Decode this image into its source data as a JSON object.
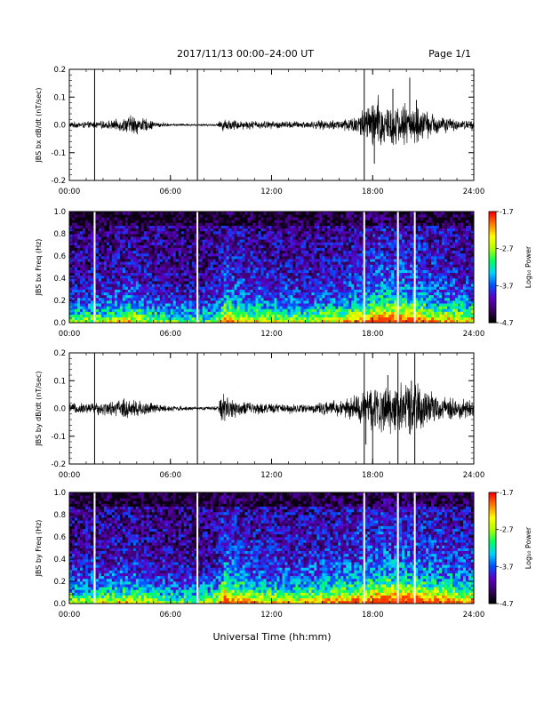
{
  "header": {
    "title": "2017/11/13  00:00–24:00 UT",
    "page": "Page 1/1"
  },
  "x_axis": {
    "ticks": [
      "00:00",
      "06:00",
      "12:00",
      "18:00",
      "24:00"
    ],
    "label": "Universal Time (hh:mm)"
  },
  "colorbar": {
    "tick_labels": [
      "-1.7",
      "-2.7",
      "-3.7",
      "-4.7"
    ],
    "label": "Log₁₀ Power"
  },
  "colors": {
    "colormap": [
      "#000000",
      "#3a0064",
      "#5a00c8",
      "#0050ff",
      "#00d0ff",
      "#00ff60",
      "#b0ff00",
      "#ffff00",
      "#ff8000",
      "#ff0000"
    ]
  },
  "chart_data": [
    {
      "type": "line",
      "ylabel": "JBS bx dB/dt (nT/sec)",
      "xlim": [
        0,
        24
      ],
      "ylim": [
        -0.2,
        0.2
      ],
      "yticks": [
        "0.2",
        "0.1",
        "0.0",
        "-0.1",
        "-0.2"
      ],
      "markers_hours": [
        1.5,
        7.6,
        17.5
      ],
      "envelope": [
        {
          "t": 0.0,
          "amp": 0.012
        },
        {
          "t": 1.5,
          "amp": 0.014
        },
        {
          "t": 2.5,
          "amp": 0.018
        },
        {
          "t": 3.3,
          "amp": 0.03
        },
        {
          "t": 3.8,
          "amp": 0.045
        },
        {
          "t": 4.3,
          "amp": 0.03
        },
        {
          "t": 5.2,
          "amp": 0.012
        },
        {
          "t": 6.0,
          "amp": 0.005
        },
        {
          "t": 7.6,
          "amp": 0.004
        },
        {
          "t": 8.8,
          "amp": 0.006
        },
        {
          "t": 9.0,
          "amp": 0.025
        },
        {
          "t": 10.5,
          "amp": 0.018
        },
        {
          "t": 12.0,
          "amp": 0.016
        },
        {
          "t": 14.0,
          "amp": 0.015
        },
        {
          "t": 16.0,
          "amp": 0.022
        },
        {
          "t": 17.0,
          "amp": 0.04
        },
        {
          "t": 17.8,
          "amp": 0.09
        },
        {
          "t": 18.3,
          "amp": 0.12
        },
        {
          "t": 19.2,
          "amp": 0.08
        },
        {
          "t": 20.0,
          "amp": 0.09
        },
        {
          "t": 21.5,
          "amp": 0.05
        },
        {
          "t": 23.0,
          "amp": 0.02
        },
        {
          "t": 24.0,
          "amp": 0.02
        }
      ],
      "spikes": [
        {
          "t": 18.1,
          "v": -0.14
        },
        {
          "t": 19.2,
          "v": 0.13
        },
        {
          "t": 20.2,
          "v": 0.17
        },
        {
          "t": 20.6,
          "v": 0.09
        }
      ]
    },
    {
      "type": "heatmap",
      "ylabel": "JBS bx Freq (Hz)",
      "xlim": [
        0,
        24
      ],
      "ylim": [
        0,
        1
      ],
      "yticks": [
        "1.0",
        "0.8",
        "0.6",
        "0.4",
        "0.2",
        "0.0"
      ],
      "clim": [
        -4.7,
        -1.7
      ],
      "gaps_hours": [
        1.5,
        7.6,
        17.5,
        19.5,
        20.5
      ],
      "activity": [
        {
          "t": 0.0,
          "level": 0.3
        },
        {
          "t": 2.0,
          "level": 0.35
        },
        {
          "t": 3.5,
          "level": 0.5
        },
        {
          "t": 4.5,
          "level": 0.4
        },
        {
          "t": 6.0,
          "level": 0.25
        },
        {
          "t": 7.6,
          "level": 0.2
        },
        {
          "t": 8.8,
          "level": 0.3
        },
        {
          "t": 9.2,
          "level": 0.7
        },
        {
          "t": 10.5,
          "level": 0.5
        },
        {
          "t": 12.0,
          "level": 0.45
        },
        {
          "t": 14.0,
          "level": 0.4
        },
        {
          "t": 16.0,
          "level": 0.5
        },
        {
          "t": 17.0,
          "level": 0.6
        },
        {
          "t": 18.5,
          "level": 0.85
        },
        {
          "t": 20.0,
          "level": 0.8
        },
        {
          "t": 22.0,
          "level": 0.6
        },
        {
          "t": 24.0,
          "level": 0.5
        }
      ]
    },
    {
      "type": "line",
      "ylabel": "JBS by dB/dt (nT/sec)",
      "xlim": [
        0,
        24
      ],
      "ylim": [
        -0.2,
        0.2
      ],
      "yticks": [
        "0.2",
        "0.1",
        "0.0",
        "-0.1",
        "-0.2"
      ],
      "markers_hours": [
        1.5,
        7.6,
        17.5,
        19.5,
        20.5
      ],
      "envelope": [
        {
          "t": 0.0,
          "amp": 0.02
        },
        {
          "t": 1.5,
          "amp": 0.025
        },
        {
          "t": 2.5,
          "amp": 0.03
        },
        {
          "t": 3.5,
          "amp": 0.045
        },
        {
          "t": 4.2,
          "amp": 0.035
        },
        {
          "t": 5.5,
          "amp": 0.015
        },
        {
          "t": 7.6,
          "amp": 0.006
        },
        {
          "t": 8.8,
          "amp": 0.01
        },
        {
          "t": 9.1,
          "amp": 0.07
        },
        {
          "t": 9.6,
          "amp": 0.05
        },
        {
          "t": 10.0,
          "amp": 0.03
        },
        {
          "t": 12.0,
          "amp": 0.02
        },
        {
          "t": 14.5,
          "amp": 0.02
        },
        {
          "t": 16.5,
          "amp": 0.04
        },
        {
          "t": 17.3,
          "amp": 0.07
        },
        {
          "t": 18.0,
          "amp": 0.1
        },
        {
          "t": 19.0,
          "amp": 0.1
        },
        {
          "t": 20.5,
          "amp": 0.1
        },
        {
          "t": 22.0,
          "amp": 0.05
        },
        {
          "t": 24.0,
          "amp": 0.035
        }
      ],
      "spikes": [
        {
          "t": 18.0,
          "v": -0.2
        },
        {
          "t": 18.9,
          "v": 0.12
        },
        {
          "t": 20.3,
          "v": 0.1
        },
        {
          "t": 17.6,
          "v": -0.13
        }
      ]
    },
    {
      "type": "heatmap",
      "ylabel": "JBS by Freq (Hz)",
      "xlim": [
        0,
        24
      ],
      "ylim": [
        0,
        1
      ],
      "yticks": [
        "1.0",
        "0.8",
        "0.6",
        "0.4",
        "0.2",
        "0.0"
      ],
      "clim": [
        -4.7,
        -1.7
      ],
      "gaps_hours": [
        1.5,
        7.6,
        17.5,
        19.5,
        20.5
      ],
      "activity": [
        {
          "t": 0.0,
          "level": 0.35
        },
        {
          "t": 2.0,
          "level": 0.4
        },
        {
          "t": 3.5,
          "level": 0.5
        },
        {
          "t": 5.0,
          "level": 0.35
        },
        {
          "t": 7.6,
          "level": 0.25
        },
        {
          "t": 8.8,
          "level": 0.4
        },
        {
          "t": 9.2,
          "level": 0.9
        },
        {
          "t": 10.0,
          "level": 0.7
        },
        {
          "t": 11.0,
          "level": 0.55
        },
        {
          "t": 13.0,
          "level": 0.5
        },
        {
          "t": 15.0,
          "level": 0.6
        },
        {
          "t": 17.0,
          "level": 0.7
        },
        {
          "t": 18.5,
          "level": 0.9
        },
        {
          "t": 20.0,
          "level": 0.9
        },
        {
          "t": 22.0,
          "level": 0.7
        },
        {
          "t": 24.0,
          "level": 0.6
        }
      ]
    }
  ]
}
